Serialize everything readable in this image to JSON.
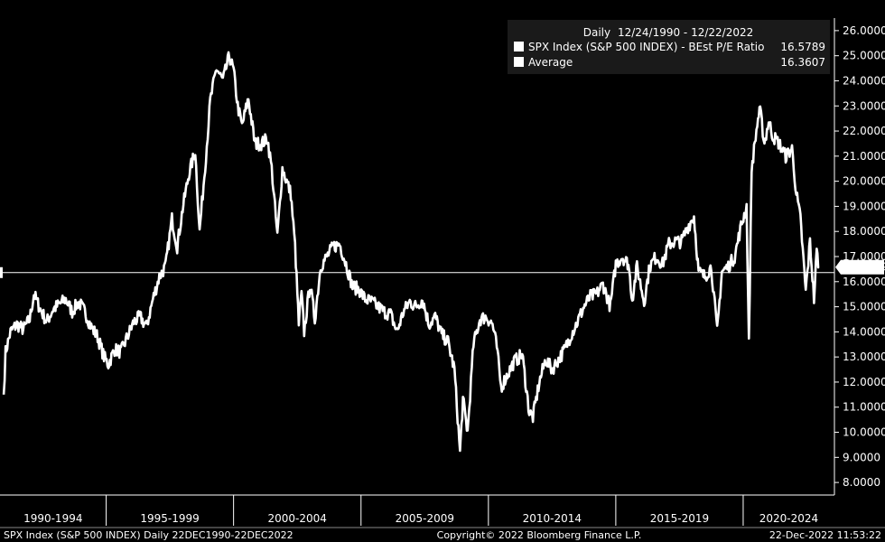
{
  "chart_data": {
    "type": "line",
    "frequency": "Daily",
    "date_range": "12/24/1990 - 12/22/2022",
    "series": [
      {
        "name": "SPX Index (S&P 500 INDEX) - BEst P/E Ratio",
        "last_value": "16.5789",
        "color": "#ffffff",
        "points": [
          [
            "1990-12-24",
            11.5
          ],
          [
            "1991-01-20",
            13.2
          ],
          [
            "1991-04-01",
            14.0
          ],
          [
            "1991-07-01",
            14.3
          ],
          [
            "1991-10-01",
            14.1
          ],
          [
            "1992-01-01",
            14.5
          ],
          [
            "1992-03-01",
            15.5
          ],
          [
            "1992-06-01",
            14.9
          ],
          [
            "1992-09-01",
            14.4
          ],
          [
            "1992-12-01",
            14.9
          ],
          [
            "1993-03-01",
            15.1
          ],
          [
            "1993-06-01",
            15.3
          ],
          [
            "1993-09-01",
            14.8
          ],
          [
            "1993-12-01",
            15.2
          ],
          [
            "1994-03-01",
            14.8
          ],
          [
            "1994-06-01",
            14.2
          ],
          [
            "1994-09-01",
            13.8
          ],
          [
            "1994-12-01",
            13.0
          ],
          [
            "1995-02-01",
            12.7
          ],
          [
            "1995-05-01",
            13.3
          ],
          [
            "1995-08-01",
            13.2
          ],
          [
            "1995-11-01",
            13.8
          ],
          [
            "1996-02-01",
            14.4
          ],
          [
            "1996-05-01",
            14.6
          ],
          [
            "1996-08-01",
            14.2
          ],
          [
            "1996-11-01",
            15.3
          ],
          [
            "1997-02-01",
            16.2
          ],
          [
            "1997-05-01",
            16.6
          ],
          [
            "1997-08-01",
            18.5
          ],
          [
            "1997-10-15",
            17.4
          ],
          [
            "1998-01-01",
            18.9
          ],
          [
            "1998-04-01",
            20.3
          ],
          [
            "1998-07-01",
            21.2
          ],
          [
            "1998-09-01",
            18.0
          ],
          [
            "1998-12-01",
            21.0
          ],
          [
            "1999-02-01",
            23.2
          ],
          [
            "1999-05-01",
            24.5
          ],
          [
            "1999-08-01",
            24.0
          ],
          [
            "1999-11-01",
            25.0
          ],
          [
            "2000-01-01",
            24.4
          ],
          [
            "2000-03-01",
            23.0
          ],
          [
            "2000-05-01",
            22.2
          ],
          [
            "2000-08-01",
            23.3
          ],
          [
            "2000-11-01",
            21.5
          ],
          [
            "2001-02-01",
            21.5
          ],
          [
            "2001-05-01",
            21.7
          ],
          [
            "2001-07-01",
            20.5
          ],
          [
            "2001-09-20",
            17.8
          ],
          [
            "2001-12-01",
            20.5
          ],
          [
            "2002-02-01",
            20.0
          ],
          [
            "2002-04-01",
            19.5
          ],
          [
            "2002-06-01",
            17.4
          ],
          [
            "2002-07-24",
            14.3
          ],
          [
            "2002-09-01",
            15.5
          ],
          [
            "2002-10-09",
            14.0
          ],
          [
            "2003-01-01",
            15.9
          ],
          [
            "2003-03-11",
            14.5
          ],
          [
            "2003-06-01",
            16.6
          ],
          [
            "2003-09-01",
            17.0
          ],
          [
            "2003-12-01",
            17.4
          ],
          [
            "2004-03-01",
            17.5
          ],
          [
            "2004-06-01",
            16.7
          ],
          [
            "2004-09-01",
            15.8
          ],
          [
            "2004-12-01",
            15.7
          ],
          [
            "2005-03-01",
            15.3
          ],
          [
            "2005-06-01",
            15.2
          ],
          [
            "2005-09-01",
            15.0
          ],
          [
            "2005-12-01",
            14.8
          ],
          [
            "2006-03-01",
            14.7
          ],
          [
            "2006-06-01",
            14.0
          ],
          [
            "2006-09-01",
            14.8
          ],
          [
            "2006-12-01",
            15.2
          ],
          [
            "2007-03-01",
            15.0
          ],
          [
            "2007-06-01",
            15.3
          ],
          [
            "2007-09-01",
            14.3
          ],
          [
            "2007-12-01",
            14.6
          ],
          [
            "2008-03-01",
            13.9
          ],
          [
            "2008-06-01",
            13.6
          ],
          [
            "2008-09-01",
            12.5
          ],
          [
            "2008-11-20",
            9.2
          ],
          [
            "2009-01-01",
            11.3
          ],
          [
            "2009-03-09",
            10.0
          ],
          [
            "2009-06-01",
            13.5
          ],
          [
            "2009-09-01",
            14.5
          ],
          [
            "2009-12-01",
            14.6
          ],
          [
            "2010-03-01",
            14.3
          ],
          [
            "2010-05-01",
            13.4
          ],
          [
            "2010-07-01",
            11.8
          ],
          [
            "2010-10-01",
            12.3
          ],
          [
            "2011-01-01",
            12.8
          ],
          [
            "2011-05-01",
            13.1
          ],
          [
            "2011-08-09",
            10.8
          ],
          [
            "2011-10-01",
            10.6
          ],
          [
            "2012-01-01",
            12.0
          ],
          [
            "2012-04-01",
            12.9
          ],
          [
            "2012-07-01",
            12.5
          ],
          [
            "2012-10-01",
            12.9
          ],
          [
            "2013-01-01",
            13.3
          ],
          [
            "2013-04-01",
            13.9
          ],
          [
            "2013-07-01",
            14.4
          ],
          [
            "2013-10-01",
            15.0
          ],
          [
            "2014-01-01",
            15.4
          ],
          [
            "2014-04-01",
            15.5
          ],
          [
            "2014-07-01",
            15.9
          ],
          [
            "2014-10-15",
            15.0
          ],
          [
            "2015-01-01",
            16.7
          ],
          [
            "2015-04-01",
            17.0
          ],
          [
            "2015-07-01",
            16.7
          ],
          [
            "2015-08-25",
            15.3
          ],
          [
            "2015-11-01",
            16.6
          ],
          [
            "2016-02-11",
            15.2
          ],
          [
            "2016-05-01",
            16.6
          ],
          [
            "2016-08-01",
            17.0
          ],
          [
            "2016-11-01",
            16.7
          ],
          [
            "2017-02-01",
            17.5
          ],
          [
            "2017-05-01",
            17.6
          ],
          [
            "2017-08-01",
            17.6
          ],
          [
            "2017-11-01",
            18.2
          ],
          [
            "2018-01-26",
            18.6
          ],
          [
            "2018-04-01",
            16.4
          ],
          [
            "2018-07-01",
            16.2
          ],
          [
            "2018-10-01",
            16.6
          ],
          [
            "2018-12-24",
            14.0
          ],
          [
            "2019-03-01",
            16.4
          ],
          [
            "2019-06-01",
            16.6
          ],
          [
            "2019-09-01",
            17.0
          ],
          [
            "2019-12-01",
            18.2
          ],
          [
            "2020-02-19",
            19.0
          ],
          [
            "2020-03-23",
            13.5
          ],
          [
            "2020-05-01",
            20.5
          ],
          [
            "2020-08-01",
            22.5
          ],
          [
            "2020-09-01",
            22.8
          ],
          [
            "2020-11-01",
            21.5
          ],
          [
            "2021-01-01",
            22.4
          ],
          [
            "2021-03-01",
            21.8
          ],
          [
            "2021-06-01",
            21.5
          ],
          [
            "2021-09-01",
            21.0
          ],
          [
            "2021-12-01",
            21.3
          ],
          [
            "2022-02-01",
            19.5
          ],
          [
            "2022-04-01",
            18.5
          ],
          [
            "2022-06-16",
            15.6
          ],
          [
            "2022-08-16",
            17.6
          ],
          [
            "2022-10-12",
            15.3
          ],
          [
            "2022-11-20",
            17.2
          ],
          [
            "2022-12-22",
            16.5789
          ]
        ]
      },
      {
        "name": "Average",
        "value": "16.3607",
        "color": "#ffffff"
      }
    ],
    "y_ticks": [
      "8.0000",
      "9.0000",
      "10.0000",
      "11.0000",
      "12.0000",
      "13.0000",
      "14.0000",
      "15.0000",
      "16.0000",
      "17.0000",
      "18.0000",
      "19.0000",
      "20.0000",
      "21.0000",
      "22.0000",
      "23.0000",
      "24.0000",
      "25.0000",
      "26.0000"
    ],
    "ylim": [
      7.5,
      26.5
    ],
    "x_period_labels": [
      "1990-1994",
      "1995-1999",
      "2000-2004",
      "2005-2009",
      "2010-2014",
      "2015-2019",
      "2020-2024"
    ],
    "xlim": [
      "1990-11-01",
      "2023-08-01"
    ],
    "last_value_marker": "16.5789",
    "grid": false,
    "legend_position": "top-right"
  },
  "footer": {
    "left": "SPX Index (S&P 500 INDEX)  Daily 22DEC1990-22DEC2022",
    "center": "Copyright© 2022 Bloomberg Finance L.P.",
    "right": "22-Dec-2022 11:53:22"
  }
}
